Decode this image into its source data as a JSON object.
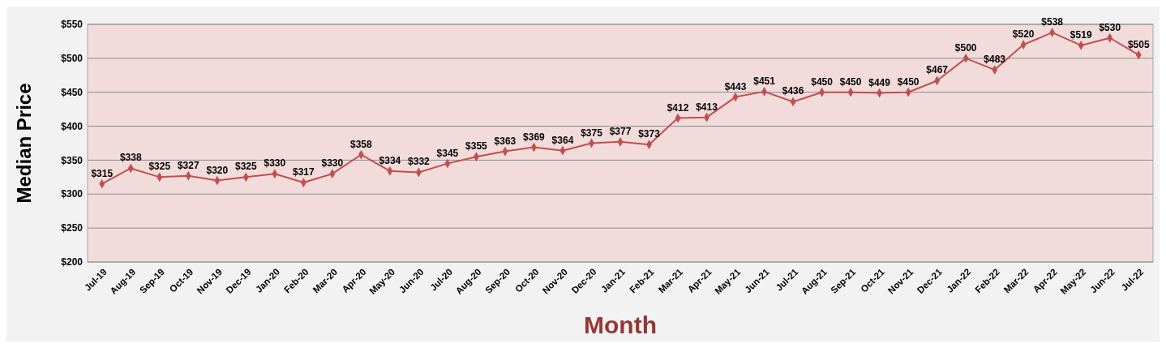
{
  "chart_data": {
    "type": "line",
    "xlabel": "Month",
    "ylabel": "Median Price",
    "categories": [
      "Jul-19",
      "Aug-19",
      "Sep-19",
      "Oct-19",
      "Nov-19",
      "Dec-19",
      "Jan-20",
      "Feb-20",
      "Mar-20",
      "Apr-20",
      "May-20",
      "Jun-20",
      "Jul-20",
      "Aug-20",
      "Sep-20",
      "Oct-20",
      "Nov-20",
      "Dec-20",
      "Jan-21",
      "Feb-21",
      "Mar-21",
      "Apr-21",
      "May-21",
      "Jun-21",
      "Jul-21",
      "Aug-21",
      "Sep-21",
      "Oct-21",
      "Nov-21",
      "Dec-21",
      "Jan-22",
      "Feb-22",
      "Mar-22",
      "Apr-22",
      "May-22",
      "Jun-22",
      "Jul-22"
    ],
    "series": [
      {
        "color": "#c0504d",
        "values": [
          315,
          338,
          325,
          327,
          320,
          325,
          330,
          317,
          330,
          358,
          334,
          332,
          345,
          355,
          363,
          369,
          364,
          375,
          377,
          373,
          412,
          413,
          443,
          451,
          436,
          450,
          450,
          449,
          450,
          467,
          500,
          483,
          520,
          538,
          519,
          530,
          505
        ],
        "value_labels": [
          "$315",
          "$338",
          "$325",
          "$327",
          "$320",
          "$325",
          "$330",
          "$317",
          "$330",
          "$358",
          "$334",
          "$332",
          "$345",
          "$355",
          "$363",
          "$369",
          "$364",
          "$375",
          "$377",
          "$373",
          "$412",
          "$413",
          "$443",
          "$451",
          "$436",
          "$450",
          "$450",
          "$449",
          "$450",
          "$467",
          "$500",
          "$483",
          "$520",
          "$538",
          "$519",
          "$530",
          "$505"
        ]
      }
    ],
    "ylim": [
      200,
      550
    ],
    "yticks": [
      {
        "value": 200,
        "label": "$200"
      },
      {
        "value": 250,
        "label": "$250"
      },
      {
        "value": 300,
        "label": "$300"
      },
      {
        "value": 350,
        "label": "$350"
      },
      {
        "value": 400,
        "label": "$400"
      },
      {
        "value": 450,
        "label": "$450"
      },
      {
        "value": 500,
        "label": "$500"
      },
      {
        "value": 550,
        "label": "$550"
      }
    ],
    "grid": "y",
    "marker": "diamond",
    "line_style": "solid"
  }
}
